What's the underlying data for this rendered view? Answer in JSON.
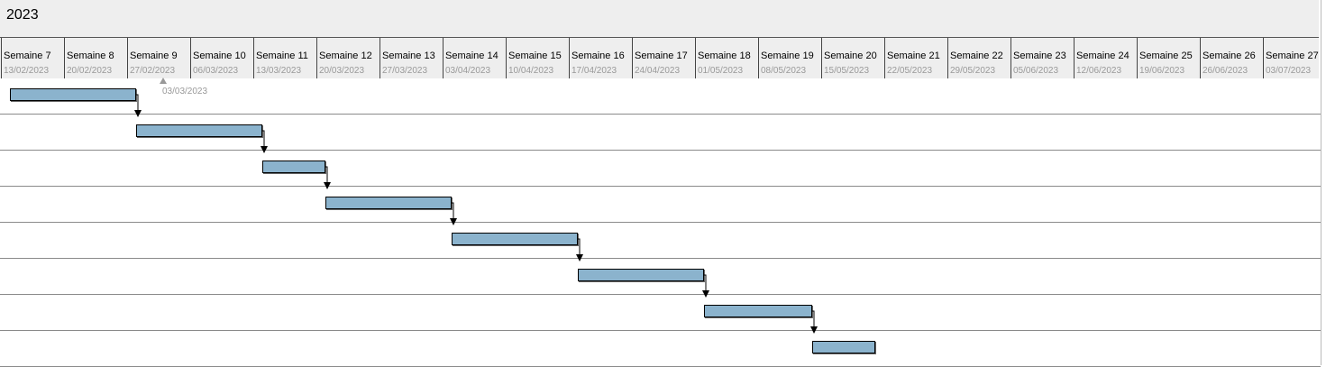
{
  "year": "2023",
  "weeks": [
    {
      "label": "Semaine 7",
      "date": "13/02/2023"
    },
    {
      "label": "Semaine 8",
      "date": "20/02/2023"
    },
    {
      "label": "Semaine 9",
      "date": "27/02/2023"
    },
    {
      "label": "Semaine 10",
      "date": "06/03/2023"
    },
    {
      "label": "Semaine 11",
      "date": "13/03/2023"
    },
    {
      "label": "Semaine 12",
      "date": "20/03/2023"
    },
    {
      "label": "Semaine 13",
      "date": "27/03/2023"
    },
    {
      "label": "Semaine 14",
      "date": "03/04/2023"
    },
    {
      "label": "Semaine 15",
      "date": "10/04/2023"
    },
    {
      "label": "Semaine 16",
      "date": "17/04/2023"
    },
    {
      "label": "Semaine 17",
      "date": "24/04/2023"
    },
    {
      "label": "Semaine 18",
      "date": "01/05/2023"
    },
    {
      "label": "Semaine 19",
      "date": "08/05/2023"
    },
    {
      "label": "Semaine 20",
      "date": "15/05/2023"
    },
    {
      "label": "Semaine 21",
      "date": "22/05/2023"
    },
    {
      "label": "Semaine 22",
      "date": "29/05/2023"
    },
    {
      "label": "Semaine 23",
      "date": "05/06/2023"
    },
    {
      "label": "Semaine 24",
      "date": "12/06/2023"
    },
    {
      "label": "Semaine 25",
      "date": "19/06/2023"
    },
    {
      "label": "Semaine 26",
      "date": "26/06/2023"
    },
    {
      "label": "Semaine 27",
      "date": "03/07/2023"
    }
  ],
  "milestone": {
    "label": "03/03/2023"
  },
  "tasks": [
    {
      "start": "14/02/2023",
      "end": "28/02/2023"
    },
    {
      "start": "28/02/2023",
      "end": "14/03/2023"
    },
    {
      "start": "14/03/2023",
      "end": "21/03/2023"
    },
    {
      "start": "21/03/2023",
      "end": "04/04/2023"
    },
    {
      "start": "04/04/2023",
      "end": "18/04/2023"
    },
    {
      "start": "18/04/2023",
      "end": "02/05/2023"
    },
    {
      "start": "02/05/2023",
      "end": "14/05/2023"
    },
    {
      "start": "14/05/2023",
      "end": "21/05/2023"
    }
  ],
  "colors": {
    "bar": "#8bb3cd",
    "header": "#eeeeee",
    "gridline": "#8a8a8a"
  }
}
